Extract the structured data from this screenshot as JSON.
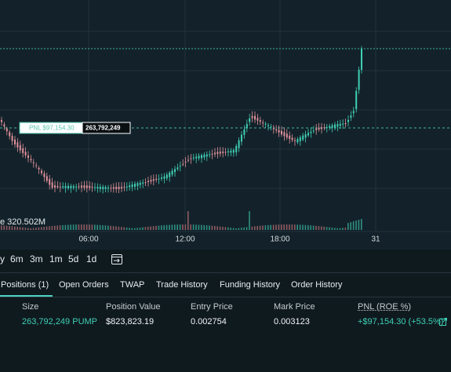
{
  "chart": {
    "price_label": "PNL $97,154.30",
    "position_size_label": "263,792,249",
    "volume_label": "e 320.502M",
    "time_ticks": [
      "06:00",
      "12:00",
      "18:00",
      "31"
    ]
  },
  "timeframes": [
    "y",
    "6m",
    "3m",
    "1m",
    "5d",
    "1d"
  ],
  "tabs": [
    "Positions (1)",
    "Open Orders",
    "TWAP",
    "Trade History",
    "Funding History",
    "Order History"
  ],
  "table": {
    "headers": [
      "Size",
      "Position Value",
      "Entry Price",
      "Mark Price",
      "PNL (ROE %)"
    ],
    "rows": [
      [
        "263,792,249 PUMP",
        "$823,823.19",
        "0.002754",
        "0.003123",
        "+$97,154.30 (+53.5%)"
      ]
    ]
  }
}
